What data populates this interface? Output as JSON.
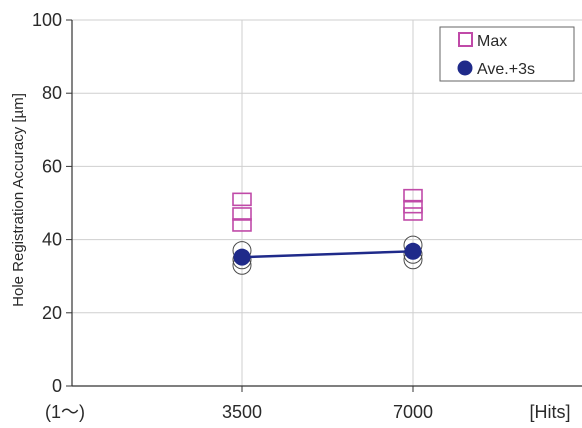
{
  "chart_data": {
    "type": "scatter",
    "title": "",
    "ylabel": "Hole Registration Accuracy [µm]",
    "xlabel": "",
    "x_tick_labels": [
      "(1～)",
      "3500",
      "7000",
      "[Hits]"
    ],
    "x_categories": [
      "3500",
      "7000"
    ],
    "ylim": [
      0,
      100
    ],
    "yticks": [
      0,
      20,
      40,
      60,
      80,
      100
    ],
    "grid": true,
    "legend_position": "top-right",
    "series": [
      {
        "name": "Max",
        "marker": "open-square",
        "color": "#c04aa8",
        "points": [
          {
            "x": "3500",
            "y": 51
          },
          {
            "x": "3500",
            "y": 47
          },
          {
            "x": "3500",
            "y": 44
          },
          {
            "x": "7000",
            "y": 52
          },
          {
            "x": "7000",
            "y": 49
          },
          {
            "x": "7000",
            "y": 47
          }
        ]
      },
      {
        "name": "Ave.+3s",
        "marker": "filled-circle",
        "color": "#1f2a8a",
        "line": true,
        "points": [
          {
            "x": "3500",
            "y": 35.2
          },
          {
            "x": "7000",
            "y": 36.8
          }
        ],
        "scatter_points": [
          {
            "x": "3500",
            "y": 37
          },
          {
            "x": "3500",
            "y": 34.5
          },
          {
            "x": "3500",
            "y": 33
          },
          {
            "x": "7000",
            "y": 38.5
          },
          {
            "x": "7000",
            "y": 36
          },
          {
            "x": "7000",
            "y": 34.5
          }
        ]
      }
    ]
  }
}
